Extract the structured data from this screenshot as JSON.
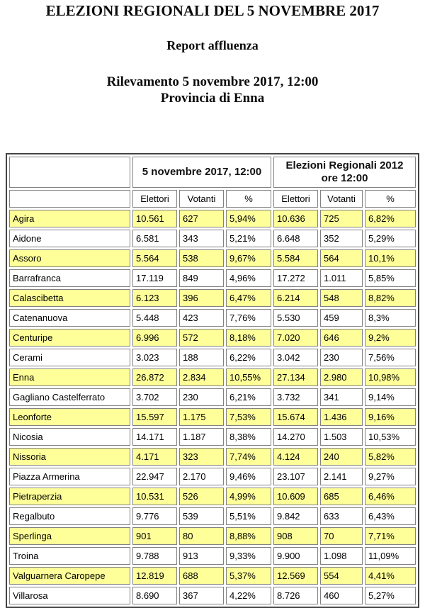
{
  "page": {
    "title": "ELEZIONI REGIONALI DEL 5 NOVEMBRE 2017",
    "subtitle": "Report affluenza",
    "survey": {
      "line1": "Rilevamento 5 novembre 2017, 12:00",
      "line2": "Provincia di Enna"
    }
  },
  "table": {
    "group_headers": [
      "5 novembre 2017, 12:00",
      "Elezioni Regionali 2012 ore 12:00"
    ],
    "sub_headers": [
      "Elettori",
      "Votanti",
      "%",
      "Elettori",
      "Votanti",
      "%"
    ],
    "rows": [
      {
        "name": "Agira",
        "highlight": true,
        "values": [
          "10.561",
          "627",
          "5,94%",
          "10.636",
          "725",
          "6,82%"
        ]
      },
      {
        "name": "Aidone",
        "highlight": false,
        "values": [
          "6.581",
          "343",
          "5,21%",
          "6.648",
          "352",
          "5,29%"
        ]
      },
      {
        "name": "Assoro",
        "highlight": true,
        "values": [
          "5.564",
          "538",
          "9,67%",
          "5.584",
          "564",
          "10,1%"
        ]
      },
      {
        "name": "Barrafranca",
        "highlight": false,
        "values": [
          "17.119",
          "849",
          "4,96%",
          "17.272",
          "1.011",
          "5,85%"
        ]
      },
      {
        "name": "Calascibetta",
        "highlight": true,
        "values": [
          "6.123",
          "396",
          "6,47%",
          "6.214",
          "548",
          "8,82%"
        ]
      },
      {
        "name": "Catenanuova",
        "highlight": false,
        "values": [
          "5.448",
          "423",
          "7,76%",
          "5.530",
          "459",
          "8,3%"
        ]
      },
      {
        "name": "Centuripe",
        "highlight": true,
        "values": [
          "6.996",
          "572",
          "8,18%",
          "7.020",
          "646",
          "9,2%"
        ]
      },
      {
        "name": "Cerami",
        "highlight": false,
        "values": [
          "3.023",
          "188",
          "6,22%",
          "3.042",
          "230",
          "7,56%"
        ]
      },
      {
        "name": "Enna",
        "highlight": true,
        "values": [
          "26.872",
          "2.834",
          "10,55%",
          "27.134",
          "2.980",
          "10,98%"
        ]
      },
      {
        "name": "Gagliano Castelferrato",
        "highlight": false,
        "values": [
          "3.702",
          "230",
          "6,21%",
          "3.732",
          "341",
          "9,14%"
        ]
      },
      {
        "name": "Leonforte",
        "highlight": true,
        "values": [
          "15.597",
          "1.175",
          "7,53%",
          "15.674",
          "1.436",
          "9,16%"
        ]
      },
      {
        "name": "Nicosia",
        "highlight": false,
        "values": [
          "14.171",
          "1.187",
          "8,38%",
          "14.270",
          "1.503",
          "10,53%"
        ]
      },
      {
        "name": "Nissoria",
        "highlight": true,
        "values": [
          "4.171",
          "323",
          "7,74%",
          "4.124",
          "240",
          "5,82%"
        ]
      },
      {
        "name": "Piazza Armerina",
        "highlight": false,
        "values": [
          "22.947",
          "2.170",
          "9,46%",
          "23.107",
          "2.141",
          "9,27%"
        ]
      },
      {
        "name": "Pietraperzia",
        "highlight": true,
        "values": [
          "10.531",
          "526",
          "4,99%",
          "10.609",
          "685",
          "6,46%"
        ]
      },
      {
        "name": "Regalbuto",
        "highlight": false,
        "values": [
          "9.776",
          "539",
          "5,51%",
          "9.842",
          "633",
          "6,43%"
        ]
      },
      {
        "name": "Sperlinga",
        "highlight": true,
        "values": [
          "901",
          "80",
          "8,88%",
          "908",
          "70",
          "7,71%"
        ]
      },
      {
        "name": "Troina",
        "highlight": false,
        "values": [
          "9.788",
          "913",
          "9,33%",
          "9.900",
          "1.098",
          "11,09%"
        ]
      },
      {
        "name": "Valguarnera Caropepe",
        "highlight": true,
        "values": [
          "12.819",
          "688",
          "5,37%",
          "12.569",
          "554",
          "4,41%"
        ]
      },
      {
        "name": "Villarosa",
        "highlight": false,
        "values": [
          "8.690",
          "367",
          "4,22%",
          "8.726",
          "460",
          "5,27%"
        ]
      }
    ]
  },
  "colors": {
    "highlight": "#ffff99",
    "cell_border": "#828282",
    "table_border": "#454545"
  }
}
